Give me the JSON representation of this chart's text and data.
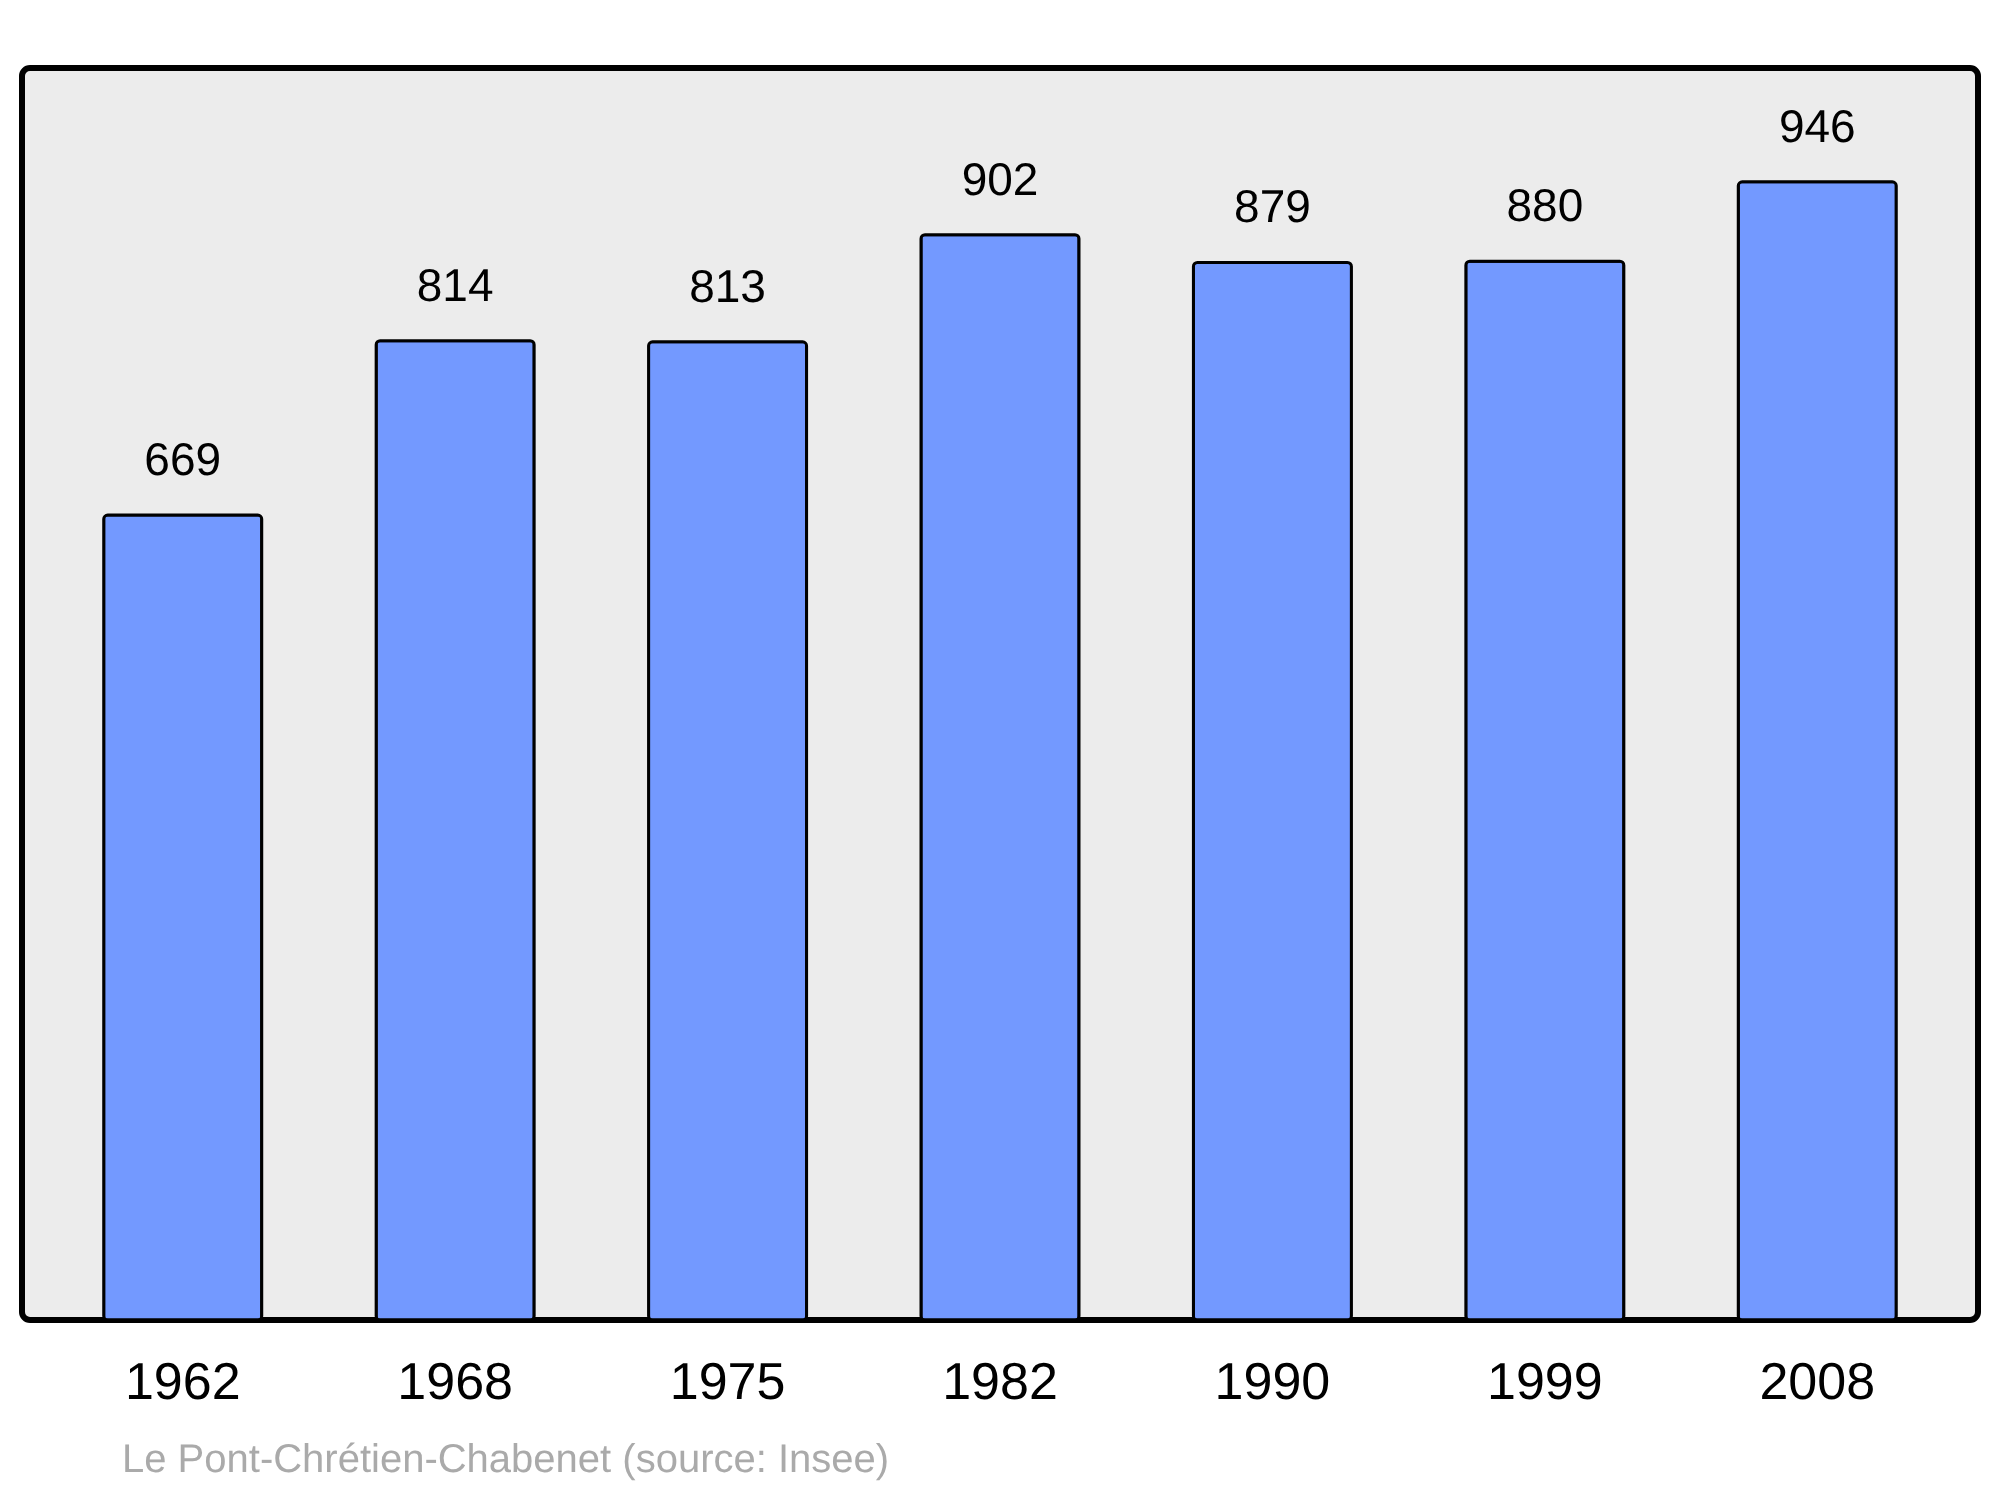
{
  "chart_data": {
    "type": "bar",
    "categories": [
      "1962",
      "1968",
      "1975",
      "1982",
      "1990",
      "1999",
      "2008"
    ],
    "values": [
      669,
      814,
      813,
      902,
      879,
      880,
      946
    ],
    "color": "#7399ff",
    "data_labels": true,
    "tick_labels": "x",
    "grid": false,
    "annotations": [
      "Le Pont-Chrétien-Chabenet    (source: Insee)"
    ]
  }
}
